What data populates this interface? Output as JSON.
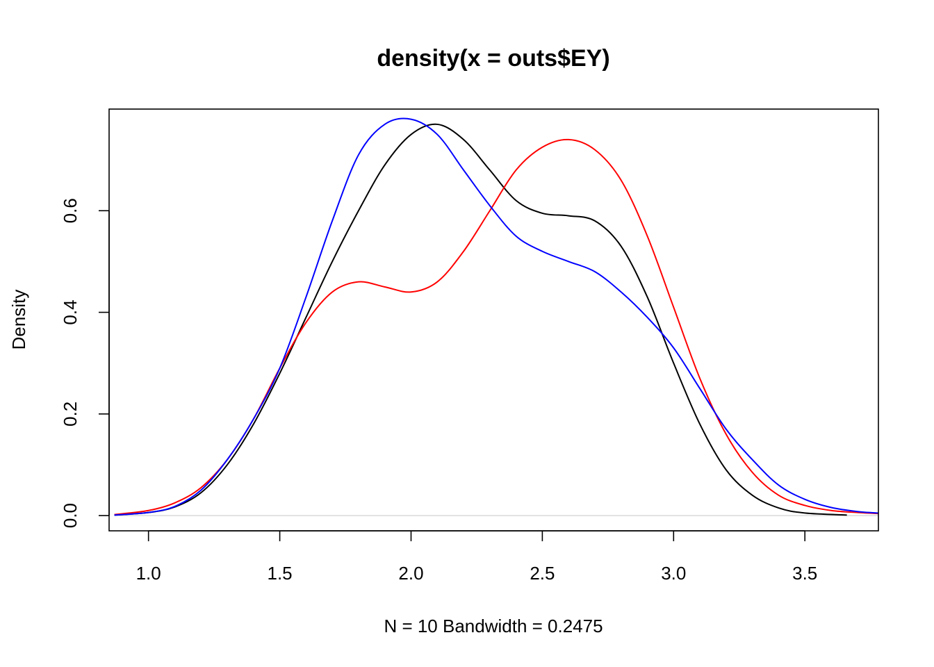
{
  "chart_data": {
    "type": "line",
    "title": "density(x = outs$EY)",
    "xlabel": "N = 10   Bandwidth = 0.2475",
    "ylabel": "Density",
    "xlim": [
      0.85,
      3.78
    ],
    "ylim": [
      -0.03,
      0.8
    ],
    "xticks": [
      1.0,
      1.5,
      2.0,
      2.5,
      3.0,
      3.5
    ],
    "xtick_labels": [
      "1.0",
      "1.5",
      "2.0",
      "2.5",
      "3.0",
      "3.5"
    ],
    "yticks": [
      0.0,
      0.2,
      0.4,
      0.6
    ],
    "ytick_labels": [
      "0.0",
      "0.2",
      "0.4",
      "0.6"
    ],
    "baseline": {
      "y": 0,
      "color": "#cccccc"
    },
    "grid": false,
    "series": [
      {
        "color": "#000000",
        "x": [
          0.87,
          1.0,
          1.1,
          1.2,
          1.3,
          1.4,
          1.5,
          1.6,
          1.7,
          1.8,
          1.9,
          2.0,
          2.1,
          2.2,
          2.3,
          2.4,
          2.5,
          2.6,
          2.7,
          2.8,
          2.9,
          3.0,
          3.1,
          3.2,
          3.3,
          3.4,
          3.5,
          3.66
        ],
        "y": [
          0.001,
          0.006,
          0.017,
          0.045,
          0.1,
          0.18,
          0.28,
          0.39,
          0.5,
          0.6,
          0.69,
          0.75,
          0.77,
          0.74,
          0.68,
          0.62,
          0.595,
          0.59,
          0.58,
          0.53,
          0.43,
          0.3,
          0.18,
          0.09,
          0.04,
          0.015,
          0.005,
          0.001
        ]
      },
      {
        "color": "#ff0000",
        "x": [
          0.87,
          1.0,
          1.1,
          1.2,
          1.3,
          1.4,
          1.5,
          1.6,
          1.7,
          1.8,
          1.9,
          2.0,
          2.1,
          2.2,
          2.3,
          2.4,
          2.5,
          2.6,
          2.7,
          2.8,
          2.9,
          3.0,
          3.1,
          3.2,
          3.3,
          3.4,
          3.5,
          3.6,
          3.7,
          3.78
        ],
        "y": [
          0.002,
          0.01,
          0.025,
          0.055,
          0.11,
          0.19,
          0.29,
          0.38,
          0.44,
          0.46,
          0.45,
          0.44,
          0.46,
          0.52,
          0.6,
          0.68,
          0.725,
          0.74,
          0.72,
          0.66,
          0.55,
          0.41,
          0.27,
          0.16,
          0.085,
          0.04,
          0.02,
          0.01,
          0.006,
          0.004
        ]
      },
      {
        "color": "#0000ff",
        "x": [
          0.87,
          1.0,
          1.1,
          1.2,
          1.3,
          1.4,
          1.5,
          1.6,
          1.7,
          1.8,
          1.9,
          2.0,
          2.1,
          2.2,
          2.3,
          2.4,
          2.5,
          2.6,
          2.7,
          2.8,
          2.9,
          3.0,
          3.1,
          3.2,
          3.3,
          3.4,
          3.5,
          3.6,
          3.7,
          3.78
        ],
        "y": [
          0.001,
          0.006,
          0.018,
          0.05,
          0.11,
          0.19,
          0.29,
          0.43,
          0.58,
          0.71,
          0.77,
          0.78,
          0.75,
          0.68,
          0.61,
          0.55,
          0.52,
          0.5,
          0.48,
          0.44,
          0.39,
          0.33,
          0.25,
          0.17,
          0.11,
          0.06,
          0.032,
          0.016,
          0.008,
          0.005
        ]
      }
    ]
  }
}
